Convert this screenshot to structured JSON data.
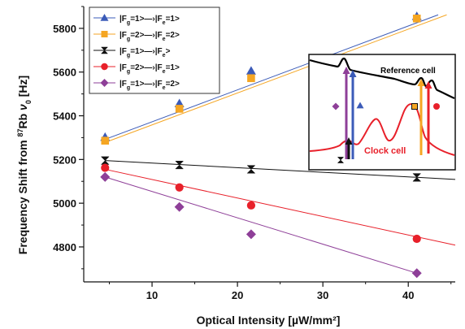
{
  "chart_data": {
    "type": "line",
    "xlabel": "Optical Intensity [µW/mm²]",
    "ylabel_parts": [
      "Frequency Shift from ",
      "87",
      "Rb ",
      "ν",
      "0",
      " [Hz]"
    ],
    "xlim": [
      2,
      45.5
    ],
    "ylim": [
      4640,
      5900
    ],
    "xticks": [
      10,
      20,
      30,
      40
    ],
    "yticks": [
      4800,
      5000,
      5200,
      5400,
      5600,
      5800
    ],
    "series": [
      {
        "name": "|Fg=1>→|Fe=1>",
        "legend_parts": [
          "|F",
          "g",
          "=1>—›|F",
          "e",
          "=1>"
        ],
        "color": "#3b5bb8",
        "marker": "triangle",
        "x": [
          4.5,
          13.2,
          21.6,
          41.0
        ],
        "y": [
          5302,
          5456,
          5605,
          5855
        ],
        "fit": [
          [
            4.5,
            5292
          ],
          [
            43.5,
            5862
          ]
        ]
      },
      {
        "name": "|Fg=2>→|Fe=2>",
        "legend_parts": [
          "|F",
          "g",
          "=2>—›|F",
          "e",
          "=2>"
        ],
        "color": "#f5a623",
        "marker": "square",
        "x": [
          4.5,
          13.2,
          21.6,
          41.0
        ],
        "y": [
          5286,
          5432,
          5572,
          5845
        ],
        "fit": [
          [
            4.5,
            5278
          ],
          [
            44.5,
            5862
          ]
        ]
      },
      {
        "name": "|Fg=1>→|Fe>",
        "legend_parts": [
          "|F",
          "g",
          "=1>—›|F",
          "e",
          ">"
        ],
        "color": "#111111",
        "marker": "bowtie",
        "x": [
          4.5,
          13.2,
          21.6,
          41.0
        ],
        "y": [
          5195,
          5175,
          5155,
          5118
        ],
        "fit": [
          [
            4.5,
            5195
          ],
          [
            45.5,
            5109
          ]
        ]
      },
      {
        "name": "|Fg=2>→|Fe=1>",
        "legend_parts": [
          "|F",
          "g",
          "=2>—›|F",
          "e",
          "=1>"
        ],
        "color": "#e8202a",
        "marker": "circle",
        "x": [
          4.5,
          13.2,
          21.6,
          41.0
        ],
        "y": [
          5162,
          5072,
          4990,
          4837
        ],
        "fit": [
          [
            4.5,
            5155
          ],
          [
            45.5,
            4808
          ]
        ]
      },
      {
        "name": "|Fg=1>→|Fe=2>",
        "legend_parts": [
          "|F",
          "g",
          "=1>—›|F",
          "e",
          "=2>"
        ],
        "color": "#8e3f98",
        "marker": "diamond",
        "x": [
          4.5,
          13.2,
          21.6,
          41.0
        ],
        "y": [
          5120,
          4983,
          4858,
          4680
        ],
        "fit": [
          [
            4.5,
            5120
          ],
          [
            41.0,
            4680
          ]
        ]
      }
    ],
    "legend_position": "top-left",
    "inset": {
      "reference_label": "Reference cell",
      "clock_label": "Clock cell",
      "reference_color": "#000000",
      "clock_color": "#e8202a",
      "arrows": [
        {
          "marker": "diamond",
          "color": "#8e3f98",
          "direction": "up"
        },
        {
          "marker": "triangle",
          "color": "#3b5bb8",
          "direction": "up"
        },
        {
          "marker": "bowtie",
          "color": "#111111",
          "direction": "up"
        },
        {
          "marker": "square",
          "color": "#f5a623",
          "direction": "up"
        },
        {
          "marker": "circle",
          "color": "#e8202a",
          "direction": "up"
        }
      ]
    }
  }
}
